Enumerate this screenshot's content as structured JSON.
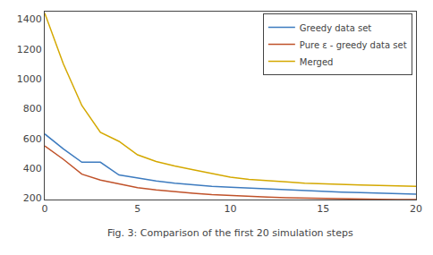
{
  "chart_data": {
    "type": "line",
    "caption": "Fig. 3: Comparison of the first 20 simulation steps",
    "xlim": [
      0,
      20
    ],
    "xticks": [
      0,
      5,
      10,
      15,
      20
    ],
    "ylim": [
      190,
      1450
    ],
    "yticks": [
      200,
      400,
      600,
      800,
      1000,
      1200,
      1400
    ],
    "grid": false,
    "legend": "upper right",
    "x": [
      0,
      1,
      2,
      3,
      4,
      5,
      6,
      7,
      8,
      9,
      10,
      11,
      12,
      13,
      14,
      15,
      16,
      17,
      18,
      19,
      20
    ],
    "series": [
      {
        "name": "Greedy data set",
        "color": "#3d7bbf",
        "values": [
          630,
          530,
          440,
          440,
          355,
          335,
          315,
          300,
          288,
          278,
          272,
          266,
          260,
          255,
          250,
          245,
          240,
          237,
          234,
          230,
          226
        ]
      },
      {
        "name": "Pure ε - greedy data set",
        "color": "#c0522a",
        "values": [
          550,
          460,
          360,
          320,
          295,
          270,
          255,
          242,
          232,
          223,
          216,
          210,
          206,
          202,
          199,
          196,
          194,
          192,
          191,
          190,
          190
        ]
      },
      {
        "name": "Merged",
        "color": "#d4a800",
        "values": [
          1440,
          1100,
          820,
          640,
          580,
          490,
          445,
          415,
          390,
          365,
          340,
          325,
          315,
          308,
          300,
          295,
          292,
          288,
          285,
          282,
          278
        ]
      }
    ]
  }
}
